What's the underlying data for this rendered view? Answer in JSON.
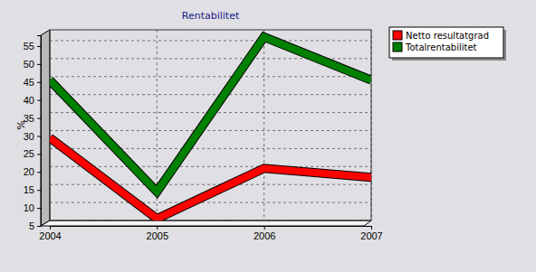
{
  "chart_data": {
    "type": "line",
    "title": "Rentabilitet",
    "y_label": "%",
    "categories": [
      "2004",
      "2005",
      "2006",
      "2007"
    ],
    "series": [
      {
        "name": "Netto resultatgrad",
        "color": "#ff0000",
        "values": [
          28,
          5.5,
          19.5,
          17
        ]
      },
      {
        "name": "Totalrentabilitet",
        "color": "#008000",
        "values": [
          44,
          13,
          56,
          44
        ]
      }
    ],
    "ylim": [
      5,
      58
    ],
    "yticks": [
      5,
      10,
      15,
      20,
      25,
      30,
      35,
      40,
      45,
      50,
      55
    ],
    "grid": true,
    "legend": "top-right"
  }
}
